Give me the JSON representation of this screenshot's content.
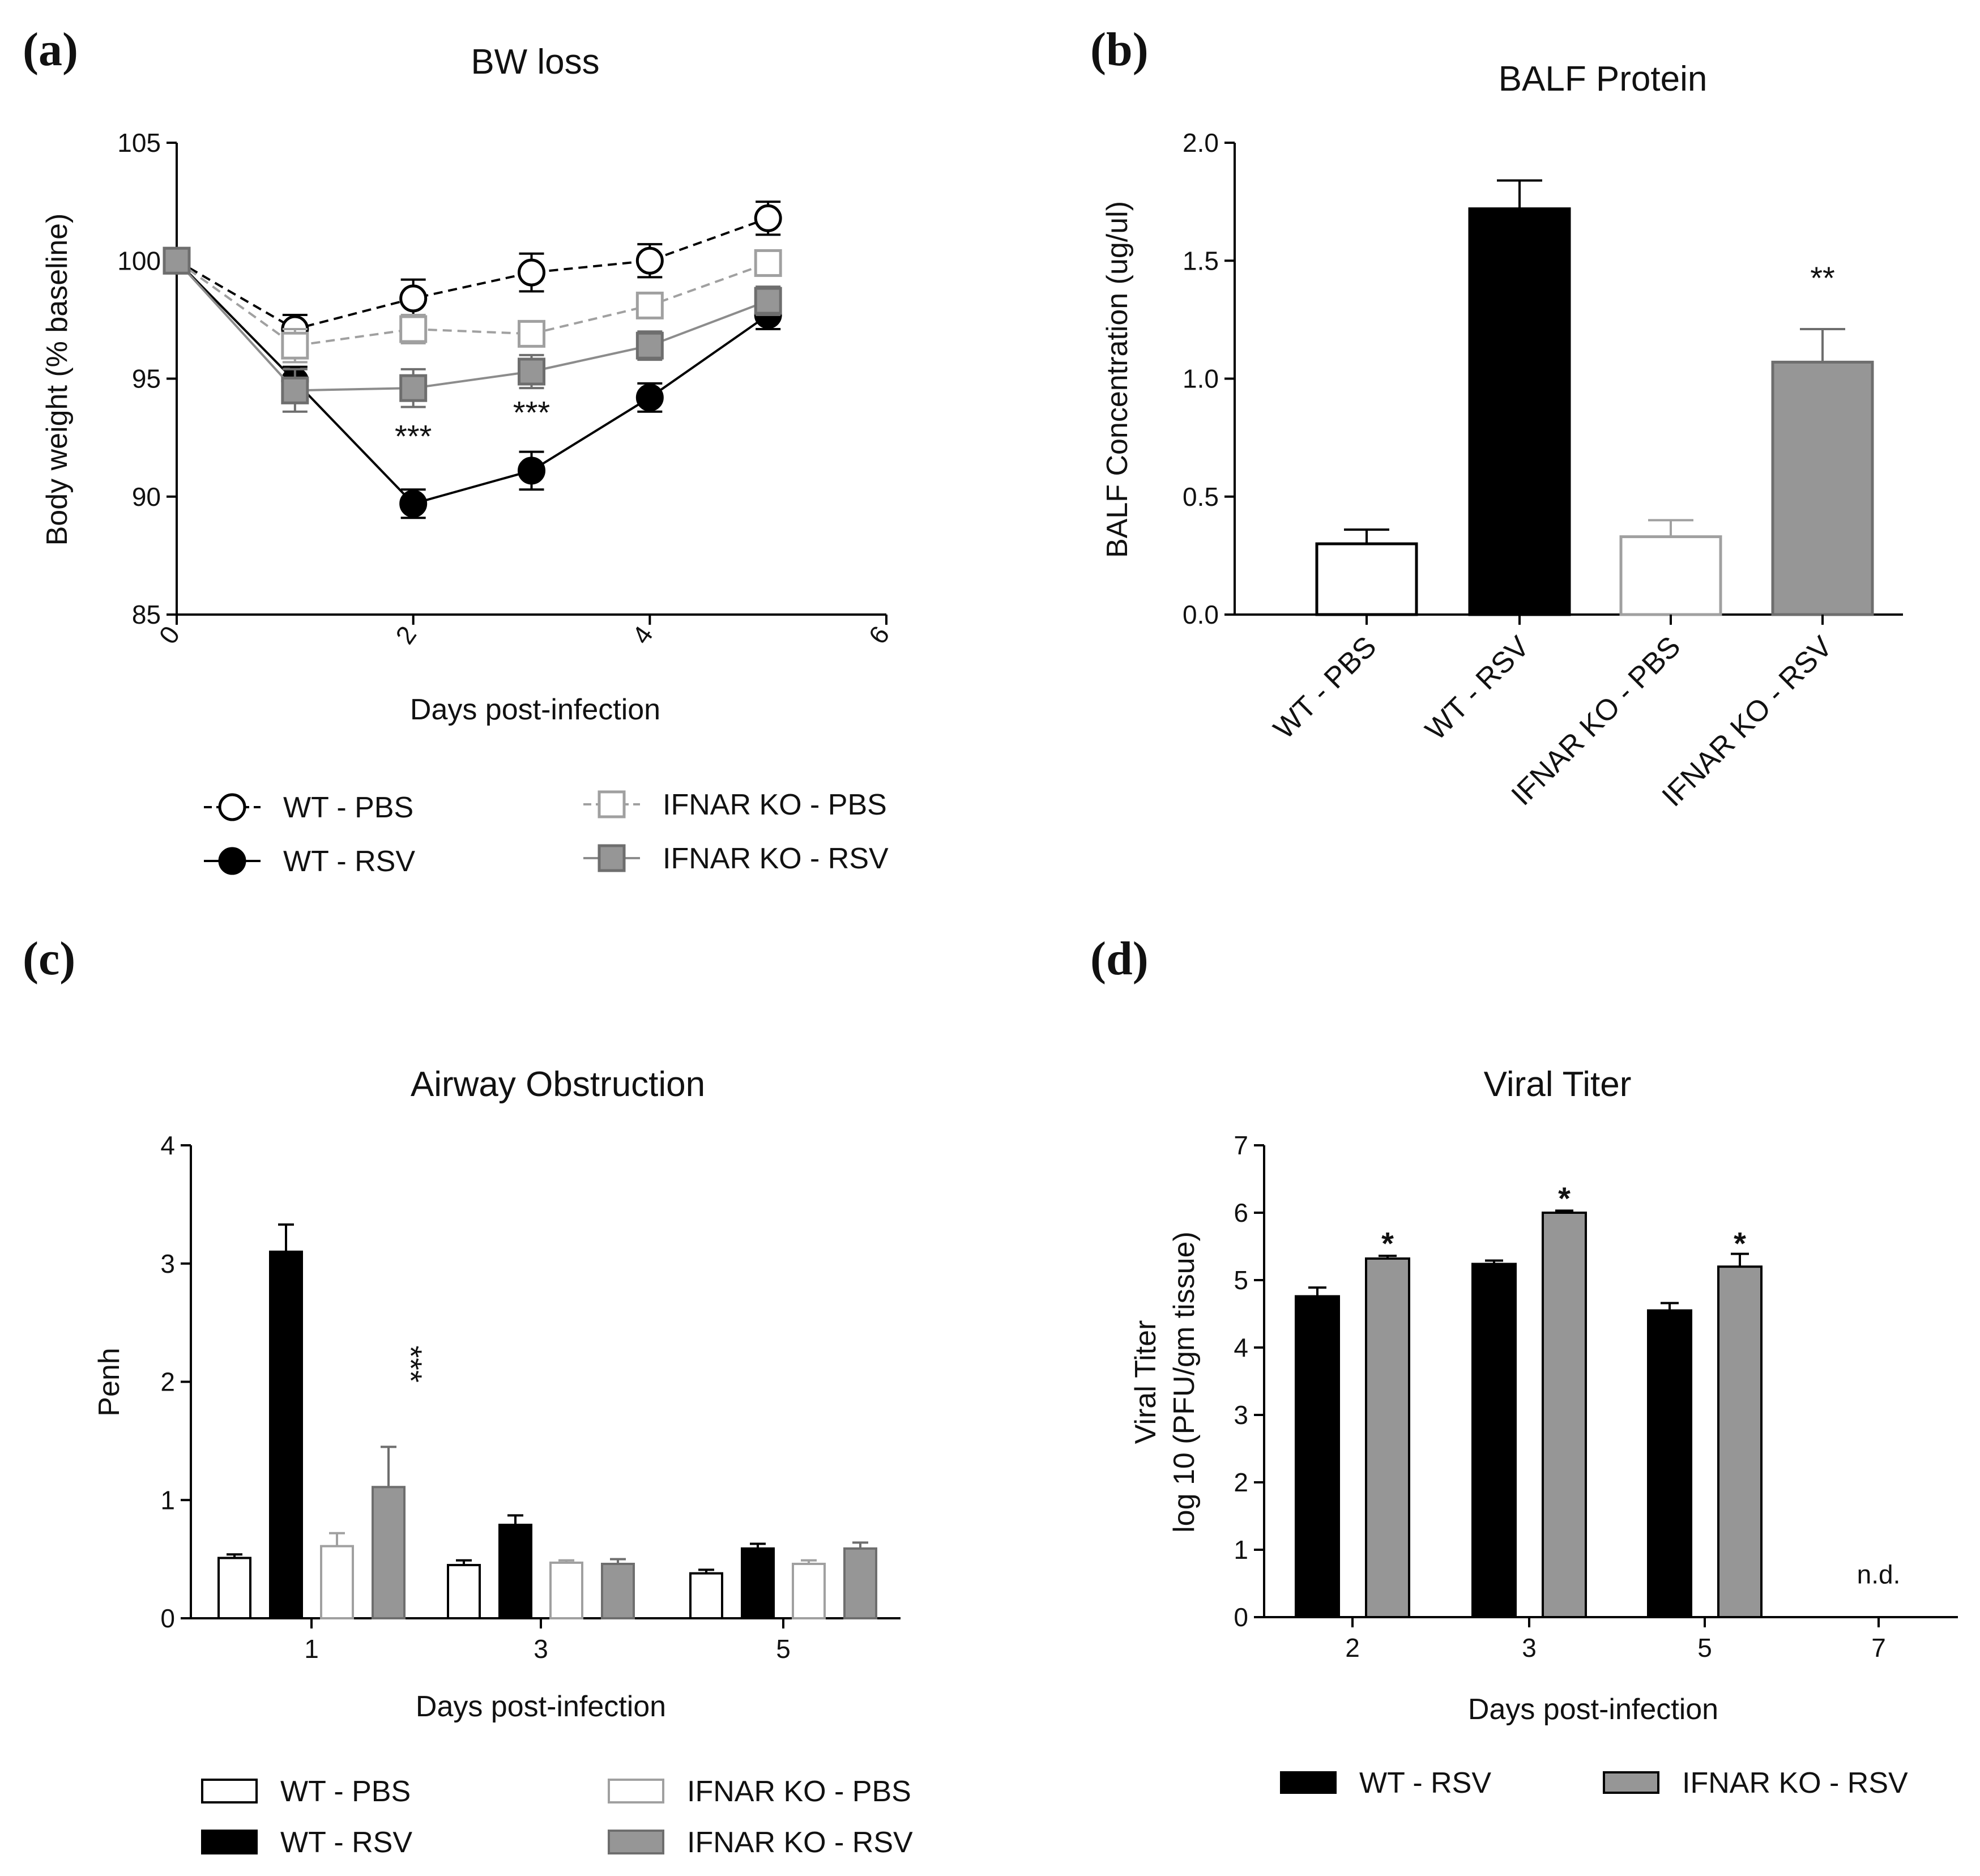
{
  "colors": {
    "wt_pbs_fill": "#ffffff",
    "wt_pbs_edge": "#000000",
    "wt_rsv_fill": "#000000",
    "wt_rsv_edge": "#000000",
    "ko_pbs_fill": "#ffffff",
    "ko_pbs_edge": "#a0a0a0",
    "ko_rsv_fill": "#969696",
    "ko_rsv_edge": "#6e6e6e"
  },
  "chart_data": [
    {
      "panel": "(a)",
      "type": "line",
      "title": "BW loss",
      "xlabel": "Days post-infection",
      "ylabel": "Body weight (% baseline)",
      "xlim": [
        0,
        6
      ],
      "ylim": [
        85,
        105
      ],
      "xticks": [
        "0",
        "2",
        "4",
        "6"
      ],
      "yticks": [
        "85",
        "90",
        "95",
        "100",
        "105"
      ],
      "x": [
        0,
        1,
        2,
        3,
        4,
        5
      ],
      "series": [
        {
          "name": "WT - PBS",
          "marker": "circle-open",
          "dashed": true,
          "values": [
            100,
            97.1,
            98.4,
            99.5,
            100.0,
            101.8
          ],
          "errors": [
            0,
            0.6,
            0.8,
            0.8,
            0.7,
            0.7
          ]
        },
        {
          "name": "WT - RSV",
          "marker": "circle-filled",
          "dashed": false,
          "values": [
            100,
            94.9,
            89.7,
            91.1,
            94.2,
            97.7
          ],
          "errors": [
            0,
            0.6,
            0.6,
            0.8,
            0.6,
            0.6
          ]
        },
        {
          "name": "IFNAR KO - PBS",
          "marker": "square-open",
          "dashed": true,
          "values": [
            100,
            96.4,
            97.1,
            96.9,
            98.1,
            99.9
          ],
          "errors": [
            0,
            0.7,
            0.6,
            0.4,
            0.5,
            0.5
          ]
        },
        {
          "name": "IFNAR KO - RSV",
          "marker": "square-filled",
          "dashed": false,
          "values": [
            100,
            94.5,
            94.6,
            95.3,
            96.4,
            98.3
          ],
          "errors": [
            0,
            0.9,
            0.8,
            0.7,
            0.6,
            0.6
          ]
        }
      ],
      "annotations": [
        {
          "text": "***",
          "x": 2,
          "y": 92.1
        },
        {
          "text": "***",
          "x": 3,
          "y": 93.1
        }
      ]
    },
    {
      "panel": "(b)",
      "type": "bar",
      "title": "BALF Protein",
      "xlabel": "",
      "ylabel": "BALF Concentration (ug/ul)",
      "ylim": [
        0,
        2.0
      ],
      "yticks": [
        "0.0",
        "0.5",
        "1.0",
        "1.5",
        "2.0"
      ],
      "categories": [
        "WT - PBS",
        "WT - RSV",
        "IFNAR KO - PBS",
        "IFNAR KO - RSV"
      ],
      "values": [
        0.3,
        1.72,
        0.33,
        1.07
      ],
      "errors": [
        0.06,
        0.12,
        0.07,
        0.14
      ],
      "annotations": [
        {
          "text": "**",
          "category": 3,
          "y": 1.38
        }
      ]
    },
    {
      "panel": "(c)",
      "type": "bar",
      "title": "Airway Obstruction",
      "xlabel": "Days post-infection",
      "ylabel": "Penh",
      "ylim": [
        0,
        4
      ],
      "yticks": [
        "0",
        "1",
        "2",
        "3",
        "4"
      ],
      "categories": [
        "1",
        "3",
        "5"
      ],
      "series": [
        {
          "name": "WT - PBS",
          "values": [
            0.51,
            0.45,
            0.38
          ],
          "errors": [
            0.03,
            0.04,
            0.03
          ]
        },
        {
          "name": "WT - RSV",
          "values": [
            3.1,
            0.79,
            0.59
          ],
          "errors": [
            0.23,
            0.08,
            0.04
          ]
        },
        {
          "name": "IFNAR KO - PBS",
          "values": [
            0.61,
            0.47,
            0.46
          ],
          "errors": [
            0.11,
            0.02,
            0.03
          ]
        },
        {
          "name": "IFNAR KO - RSV",
          "values": [
            1.11,
            0.46,
            0.59
          ],
          "errors": [
            0.34,
            0.04,
            0.05
          ]
        }
      ],
      "annotations": [
        {
          "text": "***",
          "category": 0,
          "series": 3,
          "y": 2.15
        }
      ]
    },
    {
      "panel": "(d)",
      "type": "bar",
      "title": "Viral Titer",
      "xlabel": "Days post-infection",
      "ylabel": "Viral Titer",
      "ylabel2": "log 10 (PFU/gm tissue)",
      "ylim": [
        0,
        7
      ],
      "yticks": [
        "0",
        "1",
        "2",
        "3",
        "4",
        "5",
        "6",
        "7"
      ],
      "categories": [
        "2",
        "3",
        "5",
        "7"
      ],
      "series": [
        {
          "name": "WT - RSV",
          "values": [
            4.76,
            5.24,
            4.55,
            null
          ],
          "errors": [
            0.13,
            0.05,
            0.11,
            null
          ]
        },
        {
          "name": "IFNAR  KO - RSV",
          "values": [
            5.32,
            6.0,
            5.2,
            null
          ],
          "errors": [
            0.04,
            0.03,
            0.19,
            null
          ]
        }
      ],
      "annotations": [
        {
          "text": "*",
          "category": 0,
          "y": 5.55
        },
        {
          "text": "*",
          "category": 1,
          "y": 6.22
        },
        {
          "text": "*",
          "category": 2,
          "y": 5.55
        },
        {
          "text": "n.d.",
          "category": 3,
          "y": 0.5
        }
      ]
    }
  ]
}
